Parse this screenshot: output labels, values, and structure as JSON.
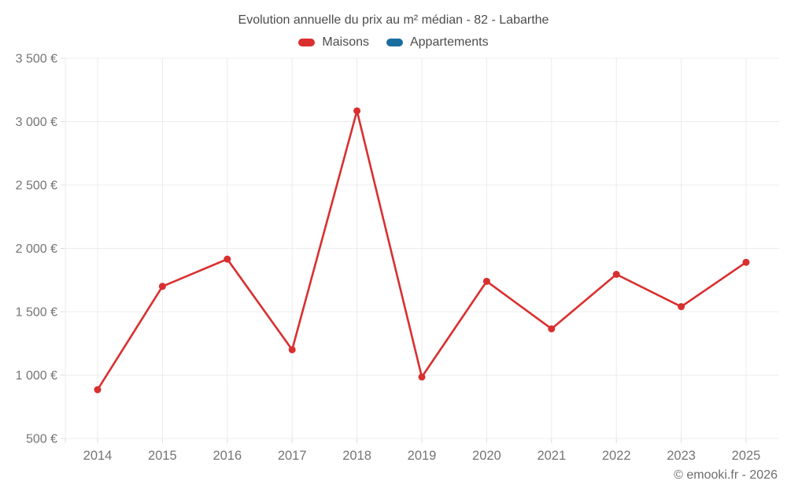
{
  "header": {
    "title": "Evolution annuelle du prix au m² médian - 82 - Labarthe"
  },
  "legend": {
    "items": [
      {
        "label": "Maisons",
        "color": "#d92f2f"
      },
      {
        "label": "Appartements",
        "color": "#1b6d9e"
      }
    ]
  },
  "footer": {
    "credit": "© emooki.fr - 2026"
  },
  "chart_data": {
    "type": "line",
    "title": "Evolution annuelle du prix au m² médian - 82 - Labarthe",
    "categories": [
      "2014",
      "2015",
      "2016",
      "2017",
      "2018",
      "2019",
      "2020",
      "2021",
      "2022",
      "2023",
      "2025"
    ],
    "series": [
      {
        "name": "Maisons",
        "color": "#d92f2f",
        "values": [
          885,
          1700,
          1915,
          1200,
          3085,
          985,
          1740,
          1365,
          1795,
          1540,
          1890
        ]
      },
      {
        "name": "Appartements",
        "color": "#1b6d9e",
        "values": []
      }
    ],
    "xlabel": "",
    "ylabel": "",
    "ylim": [
      500,
      3500
    ],
    "y_tick_step": 500,
    "y_tick_labels": [
      "500 €",
      "1 000 €",
      "1 500 €",
      "2 000 €",
      "2 500 €",
      "3 000 €",
      "3 500 €"
    ],
    "x_tick_labels": [
      "2014",
      "2015",
      "2016",
      "2017",
      "2018",
      "2019",
      "2020",
      "2021",
      "2022",
      "2023",
      "2025"
    ],
    "grid": true,
    "legend_position": "top",
    "marker": "circle",
    "axis_text_color": "#757575",
    "grid_color": "#ececec",
    "tick_color": "#dcdcdc"
  }
}
